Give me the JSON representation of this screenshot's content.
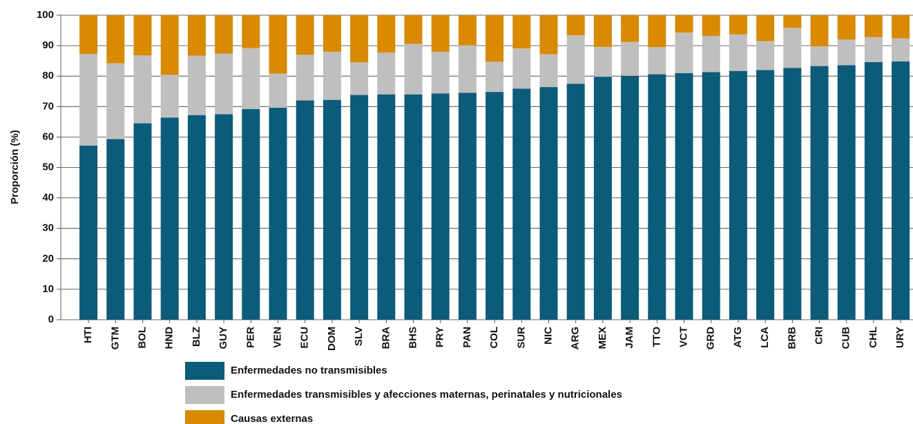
{
  "chart_data": {
    "type": "stacked_bar",
    "y_label": "Proporción (%)",
    "categories": [
      "HTI",
      "GTM",
      "BOL",
      "HND",
      "BLZ",
      "GUY",
      "PER",
      "VEN",
      "ECU",
      "DOM",
      "SLV",
      "BRA",
      "BHS",
      "PRY",
      "PAN",
      "COL",
      "SUR",
      "NIC",
      "ARG",
      "MEX",
      "JAM",
      "TTO",
      "VCT",
      "GRD",
      "ATG",
      "LCA",
      "BRB",
      "CRI",
      "CUB",
      "CHL",
      "URY"
    ],
    "series": [
      {
        "name": "Enfermedades no transmisibles",
        "color": "#0b5c7a",
        "values": [
          57.2,
          59.3,
          64.5,
          66.4,
          67.2,
          67.5,
          69.2,
          69.6,
          72.0,
          72.2,
          73.8,
          74.0,
          74.0,
          74.3,
          74.5,
          74.8,
          75.9,
          76.4,
          77.5,
          79.8,
          80.1,
          80.6,
          81.0,
          81.3,
          81.7,
          82.0,
          82.7,
          83.3,
          83.6,
          84.6,
          84.8
        ]
      },
      {
        "name": "Enfermedades transmisibles y afecciones maternas, perinatales y nutricionales",
        "color": "#bfbfbf",
        "values": [
          30.1,
          24.9,
          22.3,
          14.0,
          19.5,
          19.9,
          20.0,
          11.2,
          15.0,
          15.8,
          10.7,
          13.7,
          16.6,
          13.7,
          15.6,
          9.9,
          13.2,
          10.8,
          15.9,
          9.8,
          11.1,
          8.9,
          13.3,
          11.9,
          12.0,
          9.5,
          13.2,
          6.5,
          8.4,
          8.2,
          7.6
        ]
      },
      {
        "name": "Causas externas",
        "color": "#d98a00",
        "values": [
          12.7,
          15.8,
          13.2,
          19.6,
          13.3,
          12.6,
          10.8,
          19.2,
          13.0,
          12.0,
          15.5,
          12.3,
          9.4,
          12.0,
          9.9,
          15.3,
          10.9,
          12.8,
          6.6,
          10.4,
          8.8,
          10.5,
          5.7,
          6.8,
          6.3,
          8.5,
          4.1,
          10.2,
          8.0,
          7.2,
          7.6
        ]
      }
    ],
    "ylim": [
      0,
      100
    ],
    "yticks": [
      0,
      10,
      20,
      30,
      40,
      50,
      60,
      70,
      80,
      90,
      100
    ],
    "grid": true
  }
}
